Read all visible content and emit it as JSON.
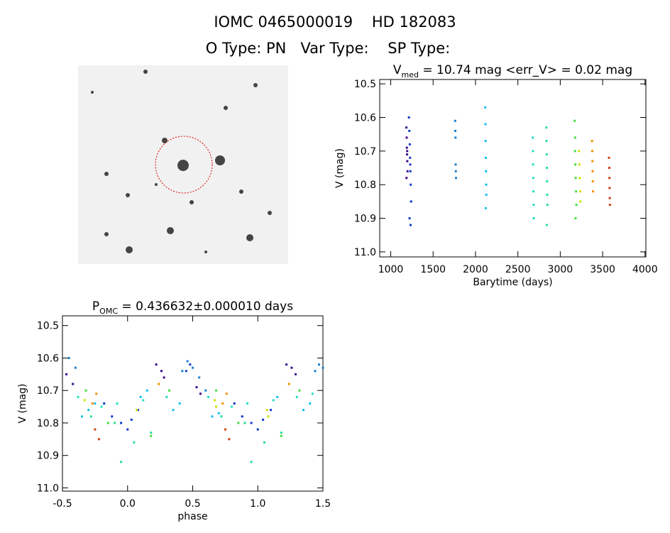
{
  "header": {
    "title": "IOMC 0465000019    HD 182083",
    "subtitle": "O Type: PN   Var Type:    SP Type:"
  },
  "chart_data": [
    {
      "type": "scatter",
      "title": "V",
      "title_subscript": "med",
      "title_rest": " = 10.74 mag <err_V> = 0.02 mag",
      "x_label": "Barytime (days)",
      "y_label": "V (mag)",
      "xlim": [
        870,
        4010
      ],
      "ylim": [
        11.015,
        10.487
      ],
      "xticks": [
        1000,
        1500,
        2000,
        2500,
        3000,
        3500,
        4000
      ],
      "yticks": [
        10.5,
        10.6,
        10.7,
        10.8,
        10.9,
        {
          "value": 11,
          "label": "11.0"
        }
      ],
      "series": [
        {
          "color": "#3a0d8c",
          "x": [
            1185,
            1188,
            1190,
            1192,
            1195,
            1198,
            1186,
            1194
          ],
          "values": [
            10.63,
            10.66,
            10.69,
            10.71,
            10.73,
            10.76,
            10.78,
            10.7
          ]
        },
        {
          "color": "#1038d0",
          "x": [
            1215,
            1220,
            1225,
            1228,
            1232,
            1236,
            1240,
            1222,
            1234,
            1230
          ],
          "values": [
            10.6,
            10.64,
            10.68,
            10.72,
            10.76,
            10.8,
            10.85,
            10.9,
            10.92,
            10.74
          ]
        },
        {
          "color": "#1a80d0",
          "x": [
            1760,
            1762,
            1764,
            1766,
            1768,
            1770
          ],
          "values": [
            10.61,
            10.64,
            10.66,
            10.74,
            10.76,
            10.78
          ]
        },
        {
          "color": "#10c0f0",
          "x": [
            2115,
            2118,
            2120,
            2122,
            2124,
            2126,
            2128,
            2121
          ],
          "values": [
            10.57,
            10.62,
            10.67,
            10.72,
            10.76,
            10.8,
            10.83,
            10.87
          ]
        },
        {
          "color": "#20e0c0",
          "x": [
            2676,
            2678,
            2680,
            2682,
            2684,
            2686,
            2688
          ],
          "values": [
            10.66,
            10.7,
            10.74,
            10.78,
            10.82,
            10.86,
            10.9
          ]
        },
        {
          "color": "#20e090",
          "x": [
            2836,
            2838,
            2840,
            2842,
            2844,
            2846,
            2848,
            2841
          ],
          "values": [
            10.63,
            10.67,
            10.71,
            10.75,
            10.79,
            10.83,
            10.86,
            10.92
          ]
        },
        {
          "color": "#40e040",
          "x": [
            3170,
            3174,
            3178,
            3182,
            3186,
            3190,
            3180,
            3176
          ],
          "values": [
            10.61,
            10.7,
            10.74,
            10.78,
            10.82,
            10.86,
            10.9,
            10.66
          ]
        },
        {
          "color": "#d0e000",
          "x": [
            3222,
            3226,
            3230,
            3234,
            3238
          ],
          "values": [
            10.7,
            10.74,
            10.78,
            10.82,
            10.85
          ]
        },
        {
          "color": "#f09000",
          "x": [
            3375,
            3378,
            3380,
            3382,
            3384,
            3386
          ],
          "values": [
            10.67,
            10.7,
            10.73,
            10.76,
            10.79,
            10.82
          ]
        },
        {
          "color": "#d04010",
          "x": [
            3575,
            3578,
            3580,
            3582,
            3584,
            3586
          ],
          "values": [
            10.72,
            10.75,
            10.78,
            10.81,
            10.84,
            10.86
          ]
        }
      ]
    },
    {
      "type": "scatter",
      "title": "P",
      "title_subscript": "OMC",
      "title_rest": " = 0.436632±0.000010 days",
      "x_label": "phase",
      "y_label": "V (mag)",
      "xlim": [
        -0.5,
        1.5
      ],
      "ylim": [
        11.01,
        10.47
      ],
      "xticks": [
        -0.5,
        {
          "value": 0,
          "label": "0.0"
        },
        0.5,
        {
          "value": 1,
          "label": "1.0"
        },
        1.5
      ],
      "yticks": [
        10.5,
        10.6,
        10.7,
        10.8,
        10.9,
        {
          "value": 11,
          "label": "11.0"
        }
      ],
      "series": [
        {
          "color": "#3a0d8c",
          "x": [
            -0.47,
            -0.42,
            0.22,
            0.26,
            0.28,
            1.22,
            1.26,
            1.29,
            0.53,
            0.56
          ],
          "values": [
            10.65,
            10.68,
            10.62,
            10.64,
            10.66,
            10.62,
            10.63,
            10.65,
            10.69,
            10.71
          ]
        },
        {
          "color": "#1038d0",
          "x": [
            -0.18,
            -0.12,
            -0.05,
            0.0,
            0.03,
            0.08,
            0.82,
            0.88,
            0.95,
            1.0,
            1.04,
            1.1,
            0.45,
            0.48
          ],
          "values": [
            10.74,
            10.78,
            10.8,
            10.82,
            10.79,
            10.76,
            10.74,
            10.78,
            10.8,
            10.82,
            10.79,
            10.76,
            10.64,
            10.62
          ]
        },
        {
          "color": "#1a80d0",
          "x": [
            -0.45,
            -0.4,
            0.42,
            0.46,
            0.5,
            0.55,
            1.44,
            1.47,
            1.5,
            0.6
          ],
          "values": [
            10.6,
            10.63,
            10.64,
            10.61,
            10.63,
            10.66,
            10.64,
            10.62,
            10.63,
            10.7
          ]
        },
        {
          "color": "#10c0f0",
          "x": [
            -0.35,
            -0.3,
            -0.25,
            0.1,
            0.15,
            0.35,
            0.4,
            0.65,
            0.7,
            1.15,
            1.35,
            1.4
          ],
          "values": [
            10.78,
            10.76,
            10.74,
            10.72,
            10.7,
            10.76,
            10.74,
            10.78,
            10.77,
            10.72,
            10.76,
            10.74
          ]
        },
        {
          "color": "#20e0c0",
          "x": [
            -0.38,
            -0.2,
            -0.08,
            0.12,
            0.3,
            0.62,
            0.8,
            0.92,
            1.12,
            1.3,
            1.42
          ],
          "values": [
            10.72,
            10.75,
            10.74,
            10.73,
            10.72,
            10.72,
            10.75,
            10.74,
            10.73,
            10.72,
            10.71
          ]
        },
        {
          "color": "#20e090",
          "x": [
            -0.28,
            -0.1,
            0.05,
            0.18,
            0.72,
            0.9,
            1.05,
            1.18,
            -0.05,
            0.95
          ],
          "values": [
            10.78,
            10.8,
            10.86,
            10.83,
            10.78,
            10.8,
            10.86,
            10.83,
            10.92,
            10.92
          ]
        },
        {
          "color": "#40e040",
          "x": [
            -0.32,
            -0.15,
            0.18,
            0.32,
            0.68,
            0.85,
            1.18,
            1.32
          ],
          "values": [
            10.7,
            10.8,
            10.84,
            10.7,
            10.7,
            10.8,
            10.84,
            10.7
          ]
        },
        {
          "color": "#d0e000",
          "x": [
            -0.33,
            0.07,
            0.67,
            1.07,
            0.68,
            1.08
          ],
          "values": [
            10.73,
            10.76,
            10.73,
            10.76,
            10.75,
            10.78
          ]
        },
        {
          "color": "#f09000",
          "x": [
            -0.27,
            0.24,
            0.73,
            1.24,
            -0.24,
            0.76
          ],
          "values": [
            10.74,
            10.68,
            10.74,
            10.68,
            10.71,
            10.71
          ]
        },
        {
          "color": "#d04010",
          "x": [
            -0.25,
            -0.22,
            0.75,
            0.78
          ],
          "values": [
            10.82,
            10.85,
            10.82,
            10.85
          ]
        }
      ]
    }
  ]
}
